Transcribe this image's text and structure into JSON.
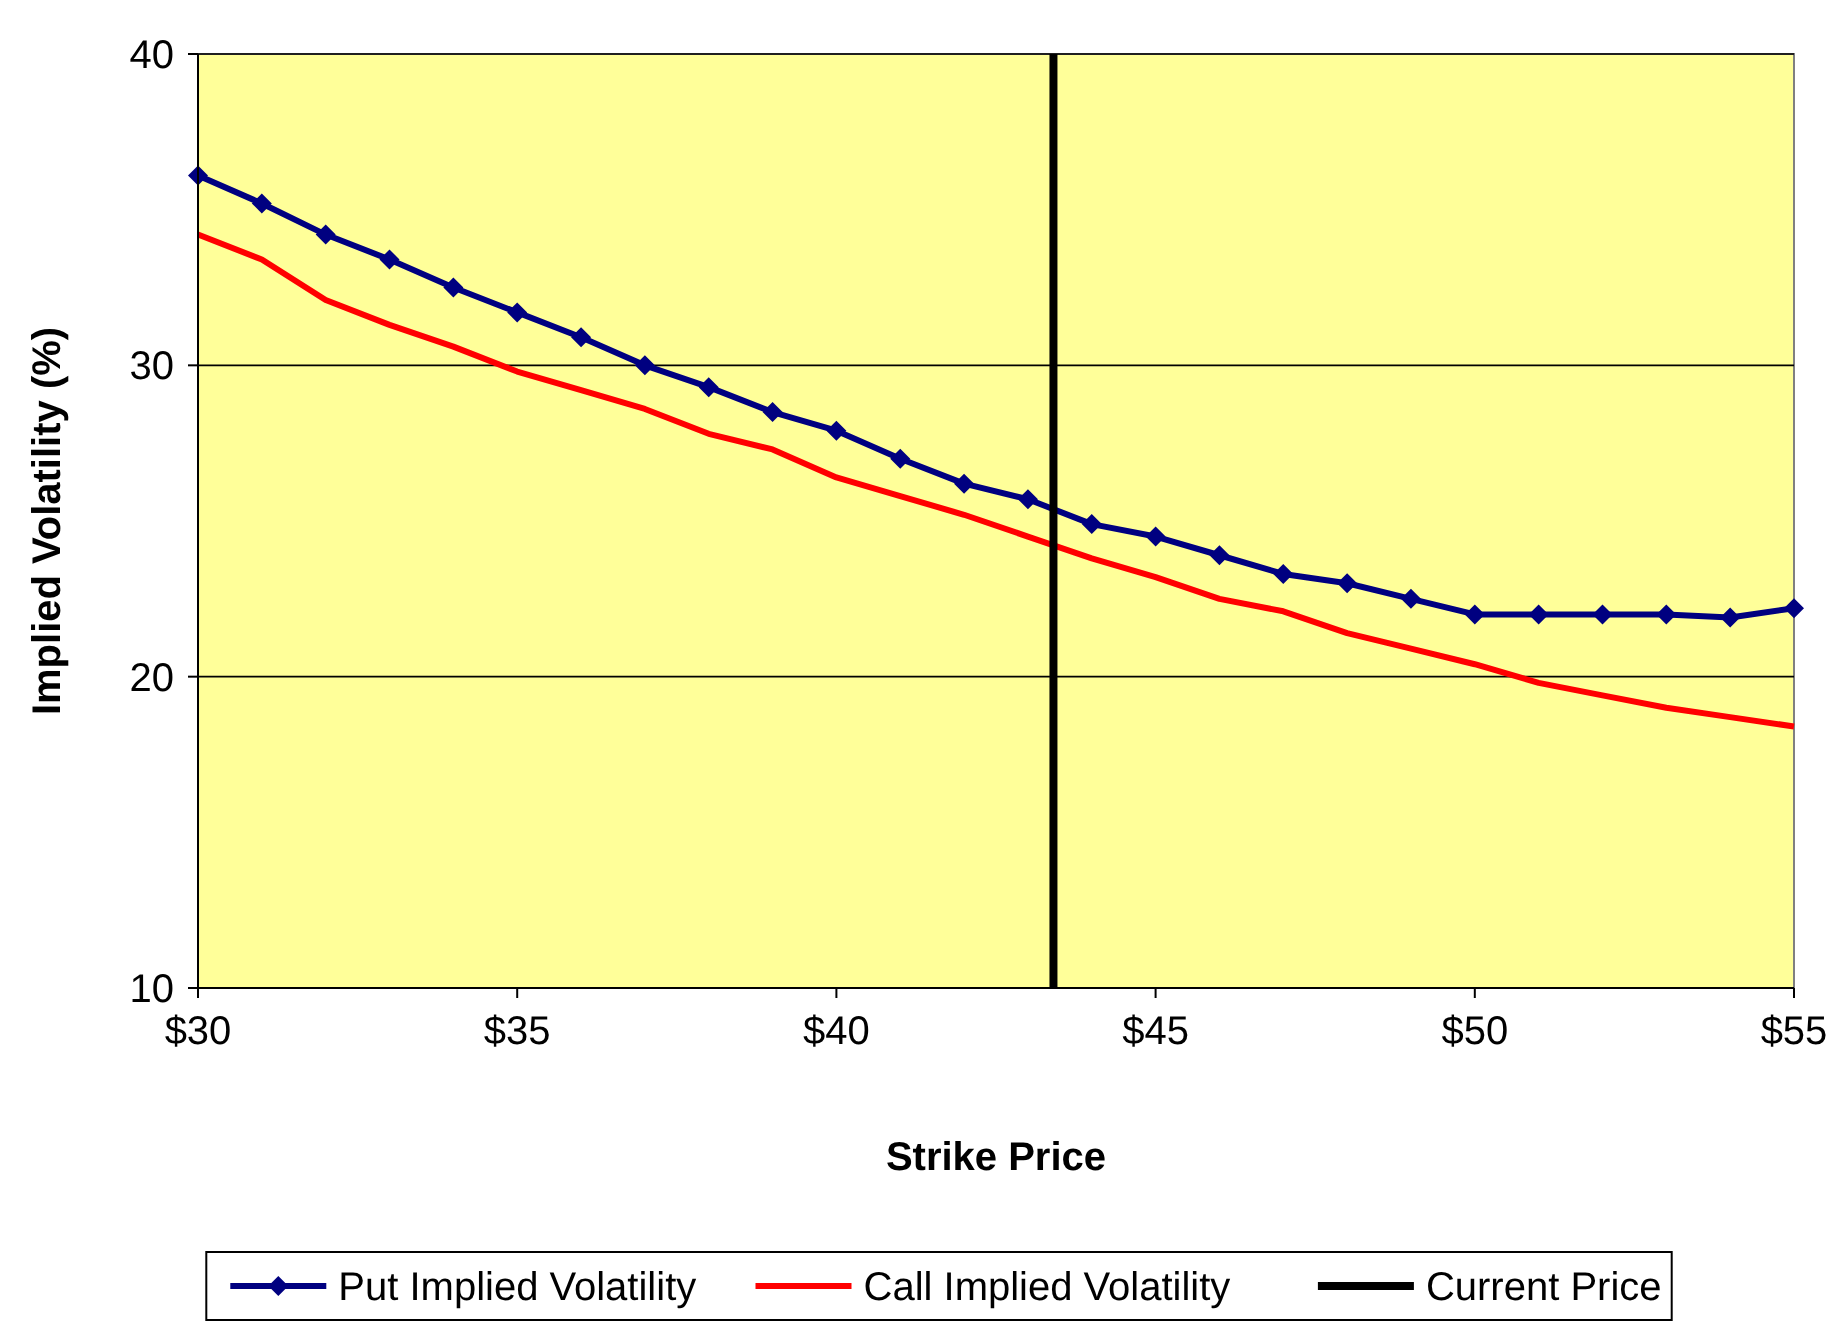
{
  "chart_data": {
    "type": "line",
    "xlabel": "Strike Price",
    "ylabel": "Implied Volatility (%)",
    "x": [
      30,
      31,
      32,
      33,
      34,
      35,
      36,
      37,
      38,
      39,
      40,
      41,
      42,
      43,
      44,
      45,
      46,
      47,
      48,
      49,
      50,
      51,
      52,
      53,
      54,
      55
    ],
    "series": [
      {
        "name": "Put Implied Volatility",
        "color": "#000080",
        "marker": "diamond",
        "values": [
          36.1,
          35.2,
          34.2,
          33.4,
          32.5,
          31.7,
          30.9,
          30.0,
          29.3,
          28.5,
          27.9,
          27.0,
          26.2,
          25.7,
          24.9,
          24.5,
          23.9,
          23.3,
          23.0,
          22.5,
          22.0,
          22.0,
          22.0,
          22.0,
          21.9,
          22.2
        ]
      },
      {
        "name": "Call Implied  Volatility",
        "color": "#ff0000",
        "marker": "none",
        "values": [
          34.2,
          33.4,
          32.1,
          31.3,
          30.6,
          29.8,
          29.2,
          28.6,
          27.8,
          27.3,
          26.4,
          25.8,
          25.2,
          24.5,
          23.8,
          23.2,
          22.5,
          22.1,
          21.4,
          20.9,
          20.4,
          19.8,
          19.4,
          19.0,
          18.7,
          18.4
        ]
      }
    ],
    "ref_lines": [
      {
        "axis": "x",
        "value": 43.4,
        "label": "Current Price",
        "color": "#000000"
      }
    ],
    "xlim": [
      30,
      55
    ],
    "xticks": [
      {
        "value": 30,
        "label": "$30"
      },
      {
        "value": 35,
        "label": "$35"
      },
      {
        "value": 40,
        "label": "$40"
      },
      {
        "value": 45,
        "label": "$45"
      },
      {
        "value": 50,
        "label": "$50"
      },
      {
        "value": 55,
        "label": "$55"
      }
    ],
    "ylim": [
      10,
      40
    ],
    "yticks": [
      10,
      20,
      30,
      40
    ],
    "grid": "y",
    "legend": "bottom"
  }
}
